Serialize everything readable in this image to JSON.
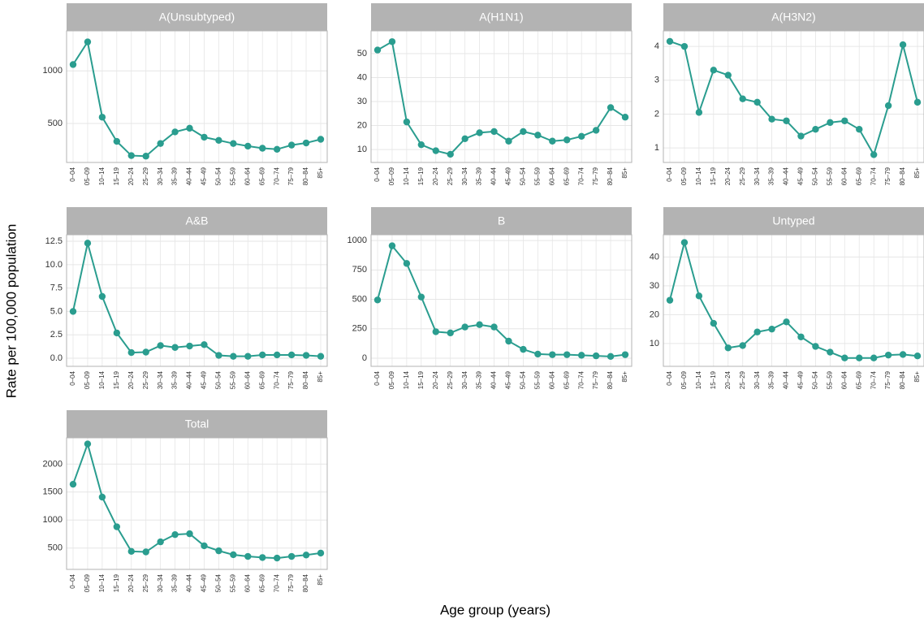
{
  "ylabel": "Rate per 100,000 population",
  "xlabel": "Age group (years)",
  "chart_data": [
    {
      "type": "line",
      "title": "A(Unsubtyped)",
      "color": "#2a9d8f",
      "grid": true,
      "categories": [
        "0–04",
        "05–09",
        "10–14",
        "15–19",
        "20–24",
        "25–29",
        "30–34",
        "35–39",
        "40–44",
        "45–49",
        "50–54",
        "55–59",
        "60–64",
        "65–69",
        "70–74",
        "75–79",
        "80–84",
        "85+"
      ],
      "values": [
        1060,
        1275,
        560,
        330,
        195,
        190,
        310,
        420,
        455,
        370,
        340,
        310,
        285,
        265,
        255,
        295,
        315,
        350
      ],
      "ylim": [
        130,
        1380
      ],
      "yticks": [
        500,
        1000
      ]
    },
    {
      "type": "line",
      "title": "A(H1N1)",
      "color": "#2a9d8f",
      "grid": true,
      "categories": [
        "0–04",
        "05–09",
        "10–14",
        "15–19",
        "20–24",
        "25–29",
        "30–34",
        "35–39",
        "40–44",
        "45–49",
        "50–54",
        "55–59",
        "60–64",
        "65–69",
        "70–74",
        "75–79",
        "80–84",
        "85+"
      ],
      "values": [
        51.5,
        55,
        21.5,
        12,
        9.5,
        8,
        14.5,
        17,
        17.5,
        13.5,
        17.5,
        16,
        13.5,
        14,
        15.5,
        18,
        27.5,
        23.5
      ],
      "ylim": [
        4.6,
        59.5
      ],
      "yticks": [
        10,
        20,
        30,
        40,
        50
      ]
    },
    {
      "type": "line",
      "title": "A(H3N2)",
      "color": "#2a9d8f",
      "grid": true,
      "categories": [
        "0–04",
        "05–09",
        "10–14",
        "15–19",
        "20–24",
        "25–29",
        "30–34",
        "35–39",
        "40–44",
        "45–49",
        "50–54",
        "55–59",
        "60–64",
        "65–69",
        "70–74",
        "75–79",
        "80–84",
        "85+"
      ],
      "values": [
        4.15,
        4.0,
        2.05,
        3.3,
        3.15,
        2.45,
        2.35,
        1.85,
        1.8,
        1.35,
        1.55,
        1.75,
        1.8,
        1.55,
        0.8,
        2.25,
        4.05,
        2.35
      ],
      "ylim": [
        0.57,
        4.46
      ],
      "yticks": [
        1,
        2,
        3,
        4
      ]
    },
    {
      "type": "line",
      "title": "A&B",
      "color": "#2a9d8f",
      "grid": true,
      "categories": [
        "0–04",
        "05–09",
        "10–14",
        "15–19",
        "20–24",
        "25–29",
        "30–34",
        "35–39",
        "40–44",
        "45–49",
        "50–54",
        "55–59",
        "60–64",
        "65–69",
        "70–74",
        "75–79",
        "80–84",
        "85+"
      ],
      "values": [
        5.0,
        12.3,
        6.6,
        2.7,
        0.6,
        0.65,
        1.35,
        1.15,
        1.3,
        1.45,
        0.3,
        0.2,
        0.2,
        0.35,
        0.35,
        0.35,
        0.3,
        0.2
      ],
      "ylim": [
        -0.87,
        13.2
      ],
      "yticks": [
        {
          "value": 0,
          "label": "0.0"
        },
        2.5,
        {
          "value": 5,
          "label": "5.0"
        },
        7.5,
        {
          "value": 10,
          "label": "10.0"
        },
        12.5
      ]
    },
    {
      "type": "line",
      "title": "B",
      "color": "#2a9d8f",
      "grid": true,
      "categories": [
        "0–04",
        "05–09",
        "10–14",
        "15–19",
        "20–24",
        "25–29",
        "30–34",
        "35–39",
        "40–44",
        "45–49",
        "50–54",
        "55–59",
        "60–64",
        "65–69",
        "70–74",
        "75–79",
        "80–84",
        "85+"
      ],
      "values": [
        495,
        955,
        805,
        520,
        225,
        215,
        265,
        285,
        265,
        145,
        75,
        35,
        30,
        30,
        25,
        20,
        15,
        30
      ],
      "ylim": [
        -69,
        1049
      ],
      "yticks": [
        0,
        250,
        500,
        750,
        1000
      ]
    },
    {
      "type": "line",
      "title": "Untyped",
      "color": "#2a9d8f",
      "grid": true,
      "categories": [
        "0–04",
        "05–09",
        "10–14",
        "15–19",
        "20–24",
        "25–29",
        "30–34",
        "35–39",
        "40–44",
        "45–49",
        "50–54",
        "55–59",
        "60–64",
        "65–69",
        "70–74",
        "75–79",
        "80–84",
        "85+"
      ],
      "values": [
        25,
        45,
        26.5,
        17,
        8.5,
        9.3,
        14,
        15,
        17.5,
        12.3,
        9,
        7,
        5,
        5,
        5,
        6,
        6.2,
        5.7
      ],
      "ylim": [
        2.1,
        47.7
      ],
      "yticks": [
        10,
        20,
        30,
        40
      ]
    },
    {
      "type": "line",
      "title": "Total",
      "color": "#2a9d8f",
      "grid": true,
      "categories": [
        "0–04",
        "05–09",
        "10–14",
        "15–19",
        "20–24",
        "25–29",
        "30–34",
        "35–39",
        "40–44",
        "45–49",
        "50–54",
        "55–59",
        "60–64",
        "65–69",
        "70–74",
        "75–79",
        "80–84",
        "85+"
      ],
      "values": [
        1640,
        2360,
        1410,
        880,
        440,
        430,
        610,
        740,
        755,
        540,
        450,
        380,
        350,
        330,
        320,
        350,
        375,
        410
      ],
      "ylim": [
        118,
        2470
      ],
      "yticks": [
        500,
        1000,
        1500,
        2000
      ]
    }
  ]
}
